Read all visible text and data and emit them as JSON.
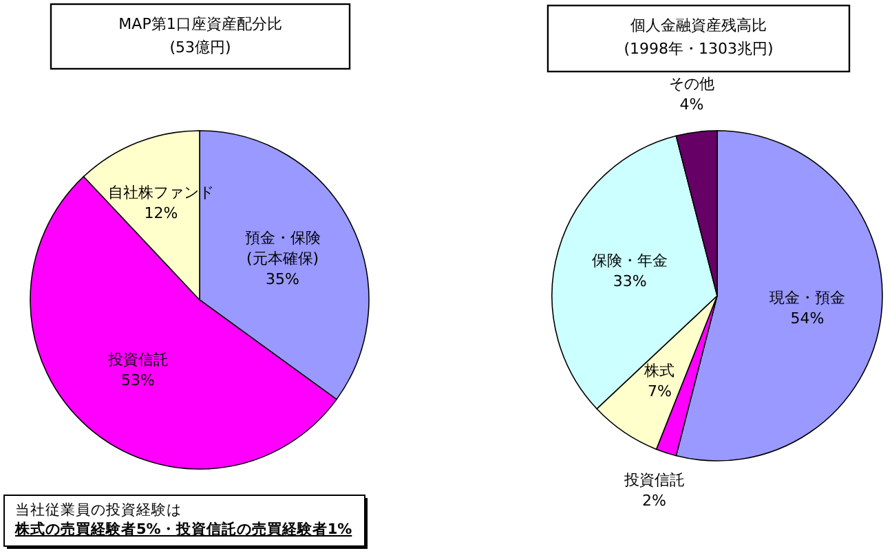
{
  "chart_data": [
    {
      "type": "pie",
      "title": "MAP第1口座資産配分比",
      "subtitle": "(53億円)",
      "categories": [
        "預金・保険\n(元本確保)",
        "投資信託",
        "自社株ファンド"
      ],
      "values": [
        35,
        53,
        12
      ],
      "colors": [
        "#9999ff",
        "#ff00ff",
        "#ffffcc"
      ],
      "value_labels": [
        "35%",
        "53%",
        "12%"
      ],
      "annotations": [
        "当社従業員の投資経験は",
        "株式の売買経験者5%・投資信託の売買経験者1%"
      ]
    },
    {
      "type": "pie",
      "title": "個人金融資産残高比",
      "subtitle": "(1998年・1303兆円)",
      "categories": [
        "現金・預金",
        "投資信託",
        "株式",
        "保険・年金",
        "その他"
      ],
      "values": [
        54,
        2,
        7,
        33,
        4
      ],
      "colors": [
        "#9999ff",
        "#ff00ff",
        "#ffffcc",
        "#ccffff",
        "#660066"
      ],
      "value_labels": [
        "54%",
        "2%",
        "7%",
        "33%",
        "4%"
      ]
    }
  ]
}
